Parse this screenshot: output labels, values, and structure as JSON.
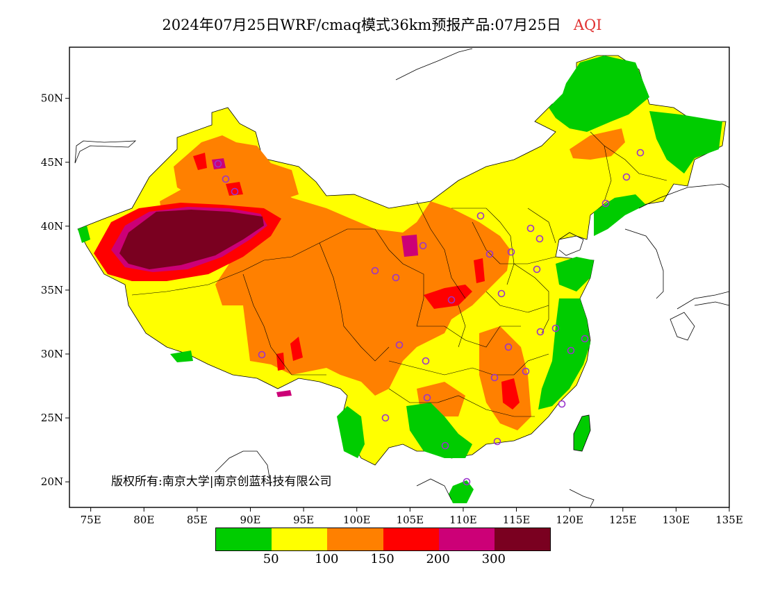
{
  "title": {
    "main": "2024年07月25日WRF/cmaq模式36km预报产品:07月25日",
    "variable": "AQI",
    "variable_color": "#e03030"
  },
  "copyright": "版权所有:南京大学|南京创蓝科技有限公司",
  "axes": {
    "lon_labels": [
      "75E",
      "80E",
      "85E",
      "90E",
      "95E",
      "100E",
      "105E",
      "110E",
      "115E",
      "120E",
      "125E",
      "130E",
      "135E"
    ],
    "lat_labels": [
      "50N",
      "45N",
      "40N",
      "35N",
      "30N",
      "25N",
      "20N"
    ],
    "lon_range": [
      73,
      135
    ],
    "lat_range": [
      18,
      54
    ]
  },
  "legend": {
    "colors": [
      "#00cc00",
      "#ffff00",
      "#ff8000",
      "#ff0000",
      "#cc0077",
      "#7a0020"
    ],
    "labels": [
      "50",
      "100",
      "150",
      "200",
      "300"
    ]
  },
  "stations_note_color": "#9933cc"
}
